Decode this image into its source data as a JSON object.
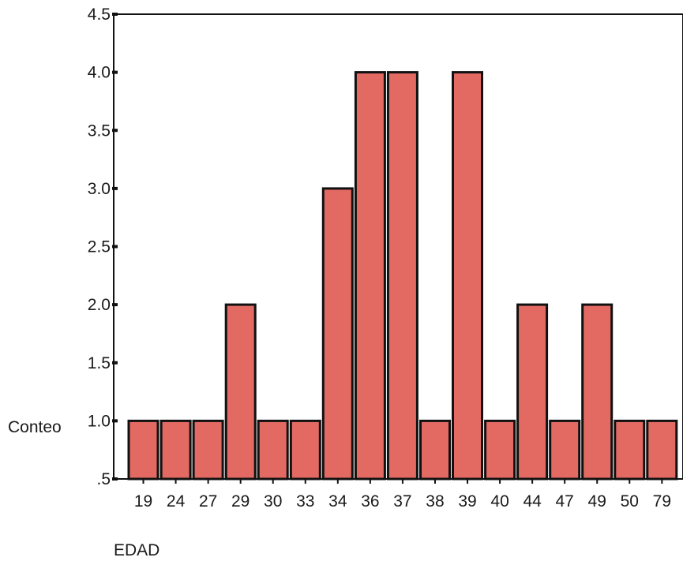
{
  "chart_data": {
    "type": "bar",
    "xlabel": "EDAD",
    "ylabel": "Conteo",
    "categories": [
      "19",
      "24",
      "27",
      "29",
      "30",
      "33",
      "34",
      "36",
      "37",
      "38",
      "39",
      "40",
      "44",
      "47",
      "49",
      "50",
      "79"
    ],
    "values": [
      1,
      1,
      1,
      2,
      1,
      1,
      3,
      4,
      4,
      1,
      4,
      1,
      2,
      1,
      2,
      1,
      1
    ],
    "ylim": [
      0.5,
      4.5
    ],
    "y_ticks": [
      ".5",
      "1.0",
      "1.5",
      "2.0",
      "2.5",
      "3.0",
      "3.5",
      "4.0",
      "4.5"
    ],
    "y_tick_values": [
      0.5,
      1.0,
      1.5,
      2.0,
      2.5,
      3.0,
      3.5,
      4.0,
      4.5
    ],
    "grid": false,
    "legend": "none",
    "colors": {
      "bar_fill": "#e36a63",
      "bar_stroke": "#111111",
      "axis": "#111111"
    }
  }
}
